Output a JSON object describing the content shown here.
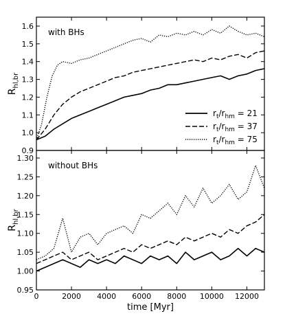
{
  "chart_data": [
    {
      "type": "line",
      "panel_label": "with BHs",
      "ylabel_main": "R",
      "ylabel_sub": "hl,br",
      "xlim": [
        0,
        13000
      ],
      "ylim": [
        0.9,
        1.65
      ],
      "yticks": [
        0.9,
        1.0,
        1.1,
        1.2,
        1.3,
        1.4,
        1.5,
        1.6
      ],
      "ytick_labels": [
        "0.9",
        "1.0",
        "1.1",
        "1.2",
        "1.3",
        "1.4",
        "1.5",
        "1.6"
      ],
      "legend": {
        "position": "lower-right",
        "entries": [
          {
            "pre": "r",
            "pre_sub": "t",
            "mid": "/r",
            "mid_sub": "hm",
            "post": " = 21",
            "style": "solid"
          },
          {
            "pre": "r",
            "pre_sub": "t",
            "mid": "/r",
            "mid_sub": "hm",
            "post": " = 37",
            "style": "dashed"
          },
          {
            "pre": "r",
            "pre_sub": "t",
            "mid": "/r",
            "mid_sub": "hm",
            "post": " = 75",
            "style": "dotted"
          }
        ]
      },
      "series": [
        {
          "style": "solid",
          "x": [
            0,
            500,
            1000,
            1500,
            2000,
            2500,
            3000,
            3500,
            4000,
            4500,
            5000,
            5500,
            6000,
            6500,
            7000,
            7500,
            8000,
            8500,
            9000,
            9500,
            10000,
            10500,
            11000,
            11500,
            12000,
            12500,
            13000
          ],
          "y": [
            0.96,
            0.98,
            1.02,
            1.05,
            1.08,
            1.1,
            1.12,
            1.14,
            1.16,
            1.18,
            1.2,
            1.21,
            1.22,
            1.24,
            1.25,
            1.27,
            1.27,
            1.28,
            1.29,
            1.3,
            1.31,
            1.32,
            1.3,
            1.32,
            1.33,
            1.35,
            1.36
          ]
        },
        {
          "style": "dashed",
          "x": [
            0,
            500,
            1000,
            1500,
            2000,
            2500,
            3000,
            3500,
            4000,
            4500,
            5000,
            5500,
            6000,
            6500,
            7000,
            7500,
            8000,
            8500,
            9000,
            9500,
            10000,
            10500,
            11000,
            11500,
            12000,
            12500,
            13000
          ],
          "y": [
            0.96,
            1.02,
            1.1,
            1.16,
            1.2,
            1.23,
            1.25,
            1.27,
            1.29,
            1.31,
            1.32,
            1.34,
            1.35,
            1.36,
            1.37,
            1.38,
            1.39,
            1.4,
            1.41,
            1.4,
            1.42,
            1.41,
            1.43,
            1.44,
            1.42,
            1.45,
            1.46
          ]
        },
        {
          "style": "dotted",
          "x": [
            0,
            300,
            600,
            900,
            1200,
            1500,
            2000,
            2500,
            3000,
            3500,
            4000,
            4500,
            5000,
            5500,
            6000,
            6500,
            7000,
            7500,
            8000,
            8500,
            9000,
            9500,
            10000,
            10500,
            11000,
            11500,
            12000,
            12500,
            13000
          ],
          "y": [
            0.96,
            1.05,
            1.2,
            1.32,
            1.38,
            1.4,
            1.39,
            1.41,
            1.42,
            1.44,
            1.46,
            1.48,
            1.5,
            1.52,
            1.53,
            1.51,
            1.55,
            1.54,
            1.56,
            1.55,
            1.57,
            1.55,
            1.58,
            1.56,
            1.6,
            1.57,
            1.55,
            1.56,
            1.54
          ]
        }
      ]
    },
    {
      "type": "line",
      "panel_label": "without BHs",
      "ylabel_main": "R",
      "ylabel_sub": "hl,br",
      "xlabel": "time [Myr]",
      "xlim": [
        0,
        13000
      ],
      "ylim": [
        0.95,
        1.32
      ],
      "xticks": [
        0,
        2000,
        4000,
        6000,
        8000,
        10000,
        12000
      ],
      "xtick_labels": [
        "0",
        "2000",
        "4000",
        "6000",
        "8000",
        "10000",
        "12000"
      ],
      "yticks": [
        0.95,
        1.0,
        1.05,
        1.1,
        1.15,
        1.2,
        1.25,
        1.3
      ],
      "ytick_labels": [
        "0.95",
        "1.00",
        "1.05",
        "1.10",
        "1.15",
        "1.20",
        "1.25",
        "1.30"
      ],
      "series": [
        {
          "style": "solid",
          "x": [
            0,
            500,
            1000,
            1500,
            2000,
            2500,
            3000,
            3500,
            4000,
            4500,
            5000,
            5500,
            6000,
            6500,
            7000,
            7500,
            8000,
            8500,
            9000,
            9500,
            10000,
            10500,
            11000,
            11500,
            12000,
            12500,
            13000
          ],
          "y": [
            1.0,
            1.01,
            1.02,
            1.03,
            1.02,
            1.01,
            1.03,
            1.02,
            1.03,
            1.02,
            1.04,
            1.03,
            1.02,
            1.04,
            1.03,
            1.04,
            1.02,
            1.05,
            1.03,
            1.04,
            1.05,
            1.03,
            1.04,
            1.06,
            1.04,
            1.06,
            1.05
          ]
        },
        {
          "style": "dashed",
          "x": [
            0,
            500,
            1000,
            1500,
            2000,
            2500,
            3000,
            3500,
            4000,
            4500,
            5000,
            5500,
            6000,
            6500,
            7000,
            7500,
            8000,
            8500,
            9000,
            9500,
            10000,
            10500,
            11000,
            11500,
            12000,
            12500,
            13000
          ],
          "y": [
            1.02,
            1.03,
            1.04,
            1.05,
            1.03,
            1.04,
            1.05,
            1.03,
            1.04,
            1.05,
            1.06,
            1.05,
            1.07,
            1.06,
            1.07,
            1.08,
            1.07,
            1.09,
            1.08,
            1.09,
            1.1,
            1.09,
            1.11,
            1.1,
            1.12,
            1.13,
            1.15
          ]
        },
        {
          "style": "dotted",
          "x": [
            0,
            500,
            1000,
            1500,
            2000,
            2500,
            3000,
            3500,
            4000,
            4500,
            5000,
            5500,
            6000,
            6500,
            7000,
            7500,
            8000,
            8500,
            9000,
            9500,
            10000,
            10500,
            11000,
            11500,
            12000,
            12500,
            13000
          ],
          "y": [
            1.03,
            1.04,
            1.06,
            1.14,
            1.05,
            1.09,
            1.1,
            1.07,
            1.1,
            1.11,
            1.12,
            1.1,
            1.15,
            1.14,
            1.16,
            1.18,
            1.15,
            1.2,
            1.17,
            1.22,
            1.18,
            1.2,
            1.23,
            1.19,
            1.21,
            1.28,
            1.22
          ]
        }
      ]
    }
  ]
}
